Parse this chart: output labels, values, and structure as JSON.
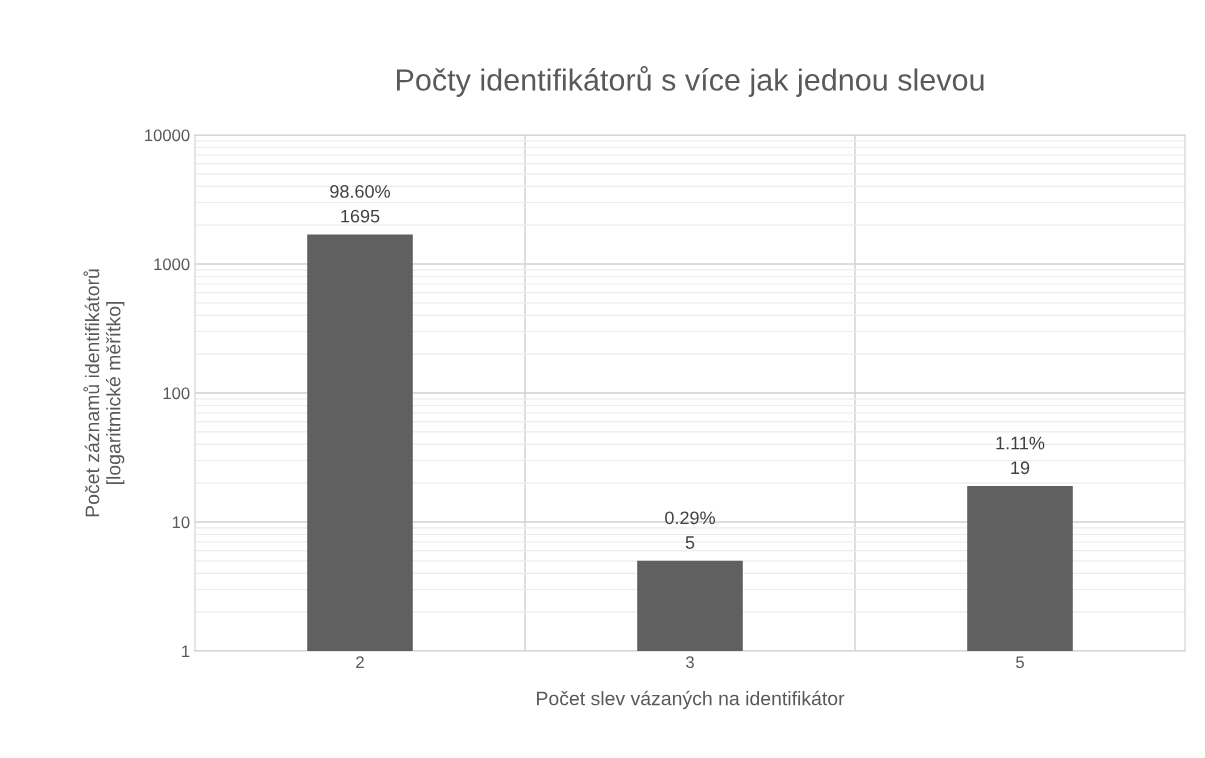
{
  "chart_data": {
    "type": "bar",
    "title": "Počty identifikátorů s více jak jednou slevou",
    "xlabel": "Počet slev vázaných na identifikátor",
    "ylabel": "Počet záznamů identifikátorů\n[logaritmické měřítko]",
    "categories": [
      "2",
      "3",
      "5"
    ],
    "values": [
      1695,
      5,
      19
    ],
    "color": "#606060",
    "value_labels": [
      "98.60%\n1695",
      "0.29%\n5",
      "1.11%\n19"
    ],
    "log": "y",
    "ylim": [
      1,
      10000
    ],
    "yticks": [
      1,
      10,
      100,
      1000,
      10000
    ],
    "grid": true,
    "legend": false
  }
}
